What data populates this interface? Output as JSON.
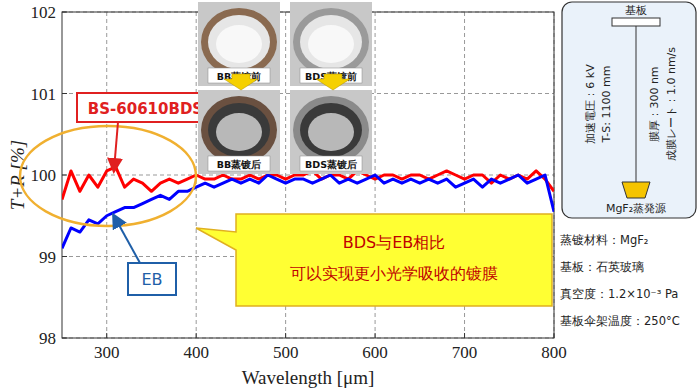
{
  "chart_data": {
    "type": "line",
    "x_label": "Wavelength [μm]",
    "y_label": "T+R [%]",
    "xlim": [
      250,
      800
    ],
    "xticks": [
      300,
      400,
      500,
      600,
      700,
      800
    ],
    "ylim": [
      98,
      102
    ],
    "yticks": [
      98,
      99,
      100,
      101,
      102
    ],
    "grid": true,
    "x": [
      250,
      260,
      270,
      280,
      290,
      300,
      310,
      320,
      330,
      340,
      350,
      360,
      370,
      380,
      390,
      400,
      410,
      420,
      430,
      440,
      450,
      460,
      470,
      480,
      490,
      500,
      510,
      520,
      530,
      540,
      550,
      560,
      570,
      580,
      590,
      600,
      610,
      620,
      630,
      640,
      650,
      660,
      670,
      680,
      690,
      700,
      710,
      720,
      730,
      740,
      750,
      760,
      770,
      780,
      790,
      800
    ],
    "series": [
      {
        "name": "BS-60610BDS",
        "color": "#ff0000",
        "values": [
          99.7,
          100.05,
          99.8,
          100.0,
          99.85,
          100.05,
          100.1,
          99.85,
          99.95,
          99.9,
          99.8,
          99.9,
          99.95,
          99.9,
          99.95,
          100.0,
          99.95,
          99.95,
          100.0,
          99.95,
          99.95,
          100.0,
          99.95,
          100.0,
          100.0,
          99.95,
          100.0,
          100.0,
          100.05,
          99.95,
          100.0,
          100.0,
          99.95,
          100.05,
          100.0,
          99.95,
          100.0,
          100.0,
          99.95,
          100.0,
          100.0,
          99.95,
          100.0,
          100.05,
          100.0,
          99.95,
          100.0,
          100.0,
          99.9,
          100.0,
          99.95,
          100.0,
          99.95,
          100.05,
          99.95,
          99.8
        ]
      },
      {
        "name": "EB",
        "color": "#0000ff",
        "values": [
          99.1,
          99.35,
          99.3,
          99.45,
          99.4,
          99.5,
          99.55,
          99.6,
          99.6,
          99.65,
          99.7,
          99.75,
          99.7,
          99.8,
          99.8,
          99.85,
          99.9,
          99.85,
          99.9,
          99.95,
          99.9,
          99.95,
          99.9,
          100.0,
          99.95,
          99.9,
          99.95,
          99.95,
          99.9,
          99.95,
          100.0,
          99.9,
          99.95,
          99.9,
          99.95,
          100.0,
          99.9,
          99.95,
          99.9,
          99.95,
          99.9,
          99.95,
          99.9,
          99.95,
          99.85,
          99.9,
          99.95,
          99.85,
          99.95,
          99.9,
          99.95,
          100.0,
          99.9,
          99.95,
          100.0,
          99.55
        ]
      }
    ],
    "annotations": [
      "BDS与EB相比",
      "可以实现更小光学吸收的镀膜"
    ],
    "photo_labels": [
      "BB蒸镀前",
      "BB蒸镀后",
      "BDS蒸镀前",
      "BDS蒸镀后"
    ],
    "setup_diagram": {
      "substrate": "基板",
      "source": "MgF₂蒸発源",
      "parameters": [
        "加速電圧：6 kV",
        "T-S: 1100 mm",
        "膜厚：300 nm",
        "成膜レート：1.0 nm/s"
      ]
    },
    "conditions": [
      "蒸镀材料：MgF₂",
      "基板：石英玻璃",
      "真空度：1.2×10⁻³ Pa",
      "基板伞架温度：250°C"
    ]
  }
}
